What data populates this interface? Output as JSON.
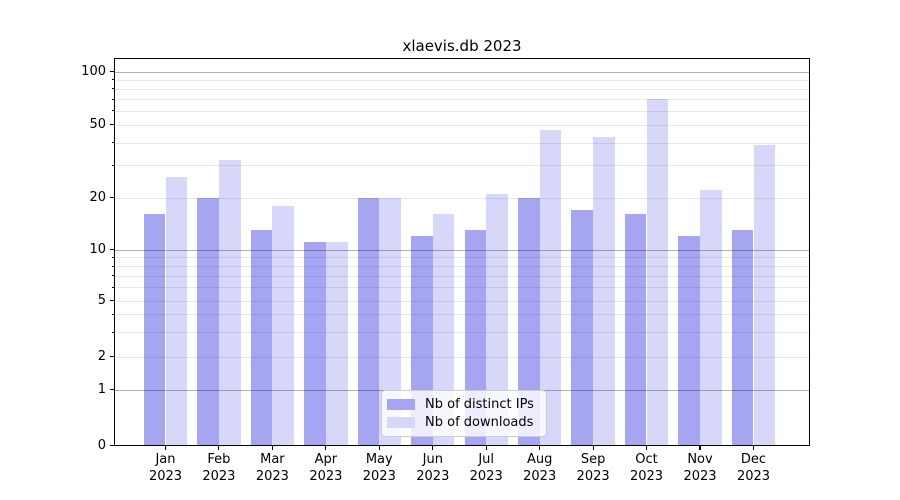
{
  "chart_data": {
    "type": "bar",
    "title": "xlaevis.db 2023",
    "categories": [
      "Jan",
      "Feb",
      "Mar",
      "Apr",
      "May",
      "Jun",
      "Jul",
      "Aug",
      "Sep",
      "Oct",
      "Nov",
      "Dec"
    ],
    "category_year": "2023",
    "series": [
      {
        "name": "Nb of distinct IPs",
        "color": "#a5a5f2",
        "values": [
          16,
          20,
          13,
          11,
          20,
          12,
          13,
          20,
          17,
          16,
          12,
          13
        ]
      },
      {
        "name": "Nb of downloads",
        "color": "#d7d7f9",
        "values": [
          26,
          32,
          18,
          11,
          20,
          16,
          21,
          47,
          43,
          70,
          22,
          39
        ]
      }
    ],
    "xlabel": "",
    "ylabel": "",
    "yscale": "log-with-zero",
    "ylim": [
      0,
      120
    ],
    "ytick_labels": [
      0,
      1,
      2,
      5,
      10,
      20,
      50,
      100
    ],
    "major_gridlines": [
      1,
      10,
      100
    ],
    "minor_gridlines": [
      3,
      4,
      6,
      7,
      8,
      9,
      30,
      40,
      60,
      70,
      80,
      90
    ],
    "grid": true,
    "legend_position": "bottom-center-inside",
    "colors": {
      "axis": "#000000",
      "major_grid": "#b0b0b0",
      "minor_grid": "#e8e8e8",
      "legend_border": "#cccccc"
    }
  }
}
